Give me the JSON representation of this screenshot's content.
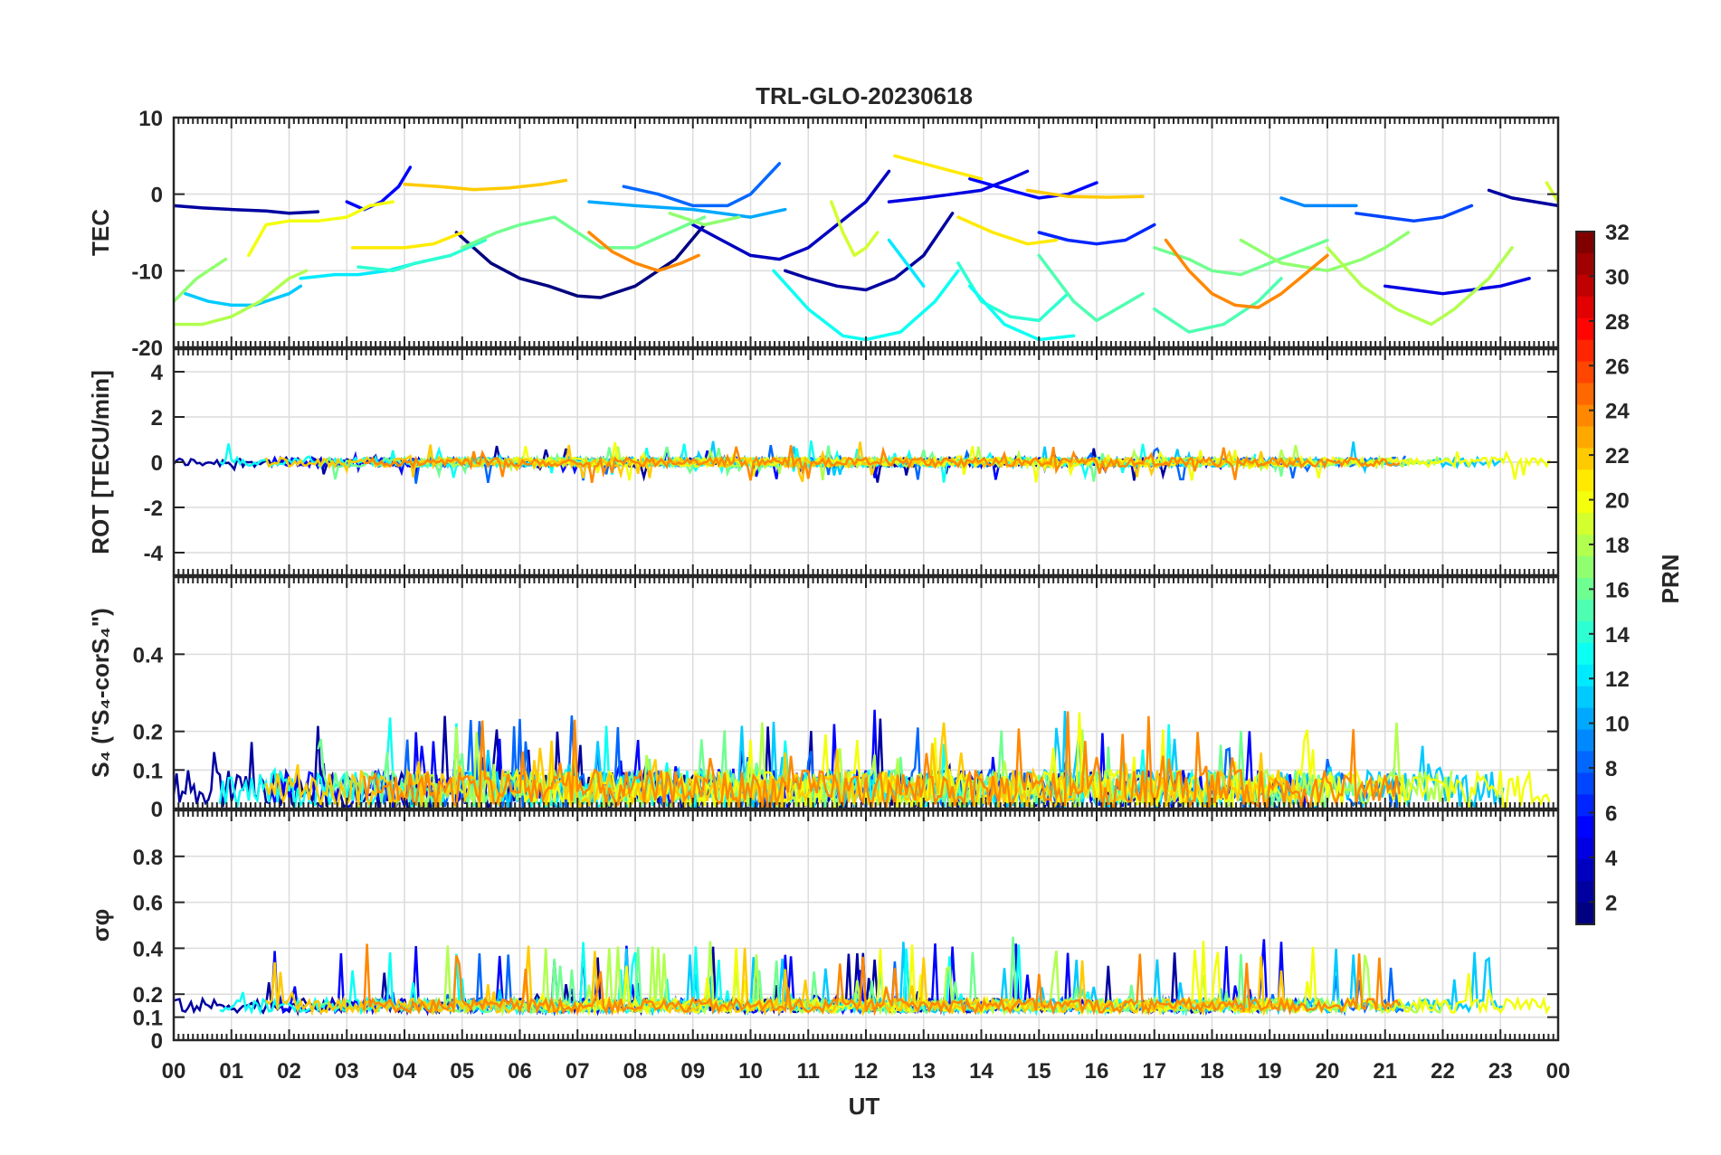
{
  "chart_data": [
    {
      "type": "line",
      "panel": "tec",
      "title": "TRL-GLO-20230618",
      "ylabel": "TEC",
      "ylim": [
        -20,
        10
      ],
      "yticks": [
        {
          "v": 10,
          "label": "10"
        },
        {
          "v": 0,
          "label": "0"
        },
        {
          "v": -10,
          "label": "-10"
        },
        {
          "v": -20,
          "label": "-20"
        }
      ],
      "grid": true,
      "series": [
        {
          "name": "PRN 1",
          "prn": 1,
          "x": [
            4.9,
            5.5,
            6.0,
            6.5,
            7.0,
            7.4,
            8.0,
            8.7,
            9.2
          ],
          "y": [
            -5,
            -9,
            -11,
            -12,
            -13.3,
            -13.5,
            -12,
            -8.5,
            -4
          ]
        },
        {
          "name": "PRN 2",
          "prn": 2,
          "x": [
            0.0,
            0.5,
            1.0,
            1.6,
            2.0,
            2.5
          ],
          "y": [
            -1.5,
            -1.8,
            -2,
            -2.2,
            -2.5,
            -2.3
          ]
        },
        {
          "name": "PRN 3",
          "prn": 3,
          "x": [
            9.0,
            9.5,
            10.0,
            10.5,
            11.0,
            11.5,
            12.0,
            12.4
          ],
          "y": [
            -4,
            -6,
            -8,
            -8.5,
            -7,
            -4,
            -1,
            3
          ]
        },
        {
          "name": "PRN 2b",
          "prn": 2,
          "x": [
            10.6,
            11.0,
            11.5,
            12.0,
            12.5,
            13.0,
            13.5
          ],
          "y": [
            -10,
            -11,
            -12,
            -12.5,
            -11,
            -8,
            -2.5
          ]
        },
        {
          "name": "PRN 4",
          "prn": 4,
          "x": [
            12.4,
            13.0,
            13.5,
            14.0,
            14.5,
            14.8
          ],
          "y": [
            -1,
            -0.5,
            0,
            0.5,
            2,
            3
          ]
        },
        {
          "name": "PRN 5",
          "prn": 5,
          "x": [
            3.0,
            3.3,
            3.6,
            3.9,
            4.1
          ],
          "y": [
            -1,
            -2,
            -1,
            1,
            3.5
          ]
        },
        {
          "name": "PRN 4b",
          "prn": 4,
          "x": [
            21.0,
            21.5,
            22.0,
            22.5,
            23.0,
            23.5
          ],
          "y": [
            -12,
            -12.5,
            -13,
            -12.5,
            -12,
            -11
          ]
        },
        {
          "name": "PRN 6",
          "prn": 6,
          "x": [
            15.0,
            15.5,
            16.0,
            16.5,
            17.0
          ],
          "y": [
            -5,
            -6,
            -6.5,
            -6,
            -4
          ]
        },
        {
          "name": "PRN 5b",
          "prn": 5,
          "x": [
            13.8,
            14.5,
            15.0,
            15.5,
            16.0
          ],
          "y": [
            2,
            0.5,
            -0.5,
            0,
            1.5
          ]
        },
        {
          "name": "PRN 8",
          "prn": 8,
          "x": [
            7.8,
            8.4,
            9.0,
            9.6,
            10.0,
            10.5
          ],
          "y": [
            1,
            0,
            -1.5,
            -1.5,
            0,
            4
          ]
        },
        {
          "name": "PRN 9",
          "prn": 9,
          "x": [
            19.2,
            19.6,
            20.0,
            20.5
          ],
          "y": [
            -0.5,
            -1.5,
            -1.5,
            -1.5
          ]
        },
        {
          "name": "PRN 7",
          "prn": 7,
          "x": [
            20.5,
            21.0,
            21.5,
            22.0,
            22.5
          ],
          "y": [
            -2.5,
            -3,
            -3.5,
            -3,
            -1.5
          ]
        },
        {
          "name": "PRN 10",
          "prn": 10,
          "x": [
            7.2,
            8.0,
            9.0,
            10.0,
            10.6
          ],
          "y": [
            -1,
            -1.5,
            -2,
            -3,
            -2
          ]
        },
        {
          "name": "PRN 11",
          "prn": 11,
          "x": [
            0.2,
            0.6,
            1.0,
            1.4,
            2.0,
            2.2
          ],
          "y": [
            -13,
            -14,
            -14.5,
            -14.5,
            -13,
            -12
          ]
        },
        {
          "name": "PRN 12",
          "prn": 12,
          "x": [
            2.2,
            2.8,
            3.2,
            3.7,
            4.2,
            4.8
          ],
          "y": [
            -11,
            -10.5,
            -10.5,
            -10,
            -9,
            -8
          ]
        },
        {
          "name": "PRN 13",
          "prn": 13,
          "x": [
            10.4,
            11.0,
            11.6,
            12.0,
            12.6,
            13.2,
            13.6
          ],
          "y": [
            -10,
            -15,
            -18.5,
            -19,
            -18,
            -14,
            -10
          ]
        },
        {
          "name": "PRN 12b",
          "prn": 12,
          "x": [
            12.4,
            12.8,
            13.0
          ],
          "y": [
            -6,
            -10,
            -12
          ]
        },
        {
          "name": "PRN 14",
          "prn": 14,
          "x": [
            13.6,
            14.0,
            14.5,
            15.0,
            15.5
          ],
          "y": [
            -9,
            -14,
            -16,
            -16.5,
            -13
          ]
        },
        {
          "name": "PRN 15",
          "prn": 15,
          "x": [
            15.0,
            15.6,
            16.0,
            16.8
          ],
          "y": [
            -8,
            -14,
            -16.5,
            -13
          ]
        },
        {
          "name": "PRN 13b",
          "prn": 13,
          "x": [
            13.8,
            14.4,
            15.0,
            15.6
          ],
          "y": [
            -12,
            -17,
            -19,
            -18.5
          ]
        },
        {
          "name": "PRN 16",
          "prn": 16,
          "x": [
            17.0,
            17.6,
            18.0,
            18.5,
            19.0,
            19.5,
            20.0
          ],
          "y": [
            -7,
            -8.5,
            -10,
            -10.5,
            -9,
            -7.5,
            -6
          ]
        },
        {
          "name": "PRN 14b",
          "prn": 14,
          "x": [
            3.2,
            3.8,
            4.2,
            4.8,
            5.4
          ],
          "y": [
            -9.5,
            -10,
            -9,
            -8,
            -6
          ]
        },
        {
          "name": "PRN 15b",
          "prn": 15,
          "x": [
            17.0,
            17.6,
            18.2,
            18.8,
            19.2
          ],
          "y": [
            -15,
            -18,
            -17,
            -14,
            -11
          ]
        },
        {
          "name": "PRN 16b",
          "prn": 16,
          "x": [
            5.0,
            5.6,
            6.0,
            6.6,
            7.0,
            7.4,
            8.0,
            8.6,
            9.2
          ],
          "y": [
            -7,
            -5,
            -4,
            -3,
            -5,
            -7,
            -7,
            -5,
            -3
          ]
        },
        {
          "name": "PRN 17",
          "prn": 17,
          "x": [
            18.5,
            19.2,
            20.0,
            20.6,
            21.0,
            21.4
          ],
          "y": [
            -6,
            -9,
            -10,
            -8.5,
            -7,
            -5
          ]
        },
        {
          "name": "PRN 18",
          "prn": 18,
          "x": [
            20.0,
            20.6,
            21.2,
            21.8,
            22.2,
            22.8,
            23.2
          ],
          "y": [
            -7,
            -12,
            -15,
            -17,
            -15,
            -11,
            -7
          ]
        },
        {
          "name": "PRN 17b",
          "prn": 17,
          "x": [
            8.6,
            9.2,
            9.8
          ],
          "y": [
            -2.5,
            -4,
            -3
          ]
        },
        {
          "name": "PRN 19",
          "prn": 19,
          "x": [
            11.4,
            11.6,
            11.8,
            12.0,
            12.2
          ],
          "y": [
            -1,
            -5,
            -8,
            -7,
            -5
          ]
        },
        {
          "name": "PRN 18b",
          "prn": 18,
          "x": [
            0.0,
            0.5,
            1.0,
            1.5,
            2.0,
            2.3
          ],
          "y": [
            -17,
            -17,
            -16,
            -14,
            -11,
            -10
          ]
        },
        {
          "name": "PRN 17c",
          "prn": 17,
          "x": [
            0.0,
            0.4,
            0.9
          ],
          "y": [
            -14,
            -11,
            -8.5
          ]
        },
        {
          "name": "PRN 20",
          "prn": 20,
          "x": [
            1.3,
            1.6,
            2.0,
            2.5,
            3.0,
            3.4,
            3.8
          ],
          "y": [
            -8,
            -4,
            -3.5,
            -3.5,
            -3,
            -1.5,
            -1
          ]
        },
        {
          "name": "PRN 21",
          "prn": 21,
          "x": [
            3.1,
            3.6,
            4.0,
            4.5,
            5.0
          ],
          "y": [
            -7,
            -7,
            -7,
            -6.5,
            -5
          ]
        },
        {
          "name": "PRN 22",
          "prn": 22,
          "x": [
            4.0,
            4.6,
            5.2,
            5.8,
            6.4,
            6.8
          ],
          "y": [
            1.3,
            1,
            0.6,
            0.8,
            1.3,
            1.8
          ]
        },
        {
          "name": "PRN 21b",
          "prn": 21,
          "x": [
            12.5,
            13.0,
            13.5,
            14.0
          ],
          "y": [
            5,
            4,
            3,
            2
          ]
        },
        {
          "name": "PRN 22b",
          "prn": 22,
          "x": [
            14.8,
            15.5,
            16.2,
            16.8
          ],
          "y": [
            0.5,
            -0.3,
            -0.4,
            -0.3
          ]
        },
        {
          "name": "PRN 21c",
          "prn": 21,
          "x": [
            13.6,
            14.2,
            14.8,
            15.3
          ],
          "y": [
            -3,
            -5,
            -6.5,
            -6
          ]
        },
        {
          "name": "PRN 19b",
          "prn": 19,
          "x": [
            23.8,
            24.0
          ],
          "y": [
            1.5,
            -1
          ]
        },
        {
          "name": "PRN 24",
          "prn": 24,
          "x": [
            7.2,
            7.6,
            8.0,
            8.4,
            8.8,
            9.1
          ],
          "y": [
            -5,
            -7.5,
            -9,
            -10,
            -9,
            -8
          ]
        },
        {
          "name": "PRN 24b",
          "prn": 24,
          "x": [
            17.2,
            17.6,
            18.0,
            18.4,
            18.8,
            19.2,
            19.6,
            20.0
          ],
          "y": [
            -6,
            -10,
            -13,
            -14.5,
            -14.8,
            -13,
            -10.5,
            -8
          ]
        },
        {
          "name": "PRN 2c",
          "prn": 2,
          "x": [
            22.8,
            23.2,
            23.6,
            24.0
          ],
          "y": [
            0.5,
            -0.5,
            -1,
            -1.5
          ]
        }
      ]
    },
    {
      "type": "line",
      "panel": "rot",
      "ylabel": "ROT [TECU/min]",
      "ylim": [
        -5,
        5
      ],
      "yticks": [
        {
          "v": 4,
          "label": "4"
        },
        {
          "v": 2,
          "label": "2"
        },
        {
          "v": 0,
          "label": "0"
        },
        {
          "v": -2,
          "label": "-2"
        },
        {
          "v": -4,
          "label": "-4"
        }
      ],
      "grid": true,
      "noise": {
        "center": 0,
        "amplitude": 0.2,
        "peak_amplitude": 0.8
      }
    },
    {
      "type": "line",
      "panel": "s4",
      "ylabel": "S₄ (\"S₄-corS₄\")",
      "ylim": [
        0,
        0.6
      ],
      "yticks": [
        {
          "v": 0.4,
          "label": "0.4"
        },
        {
          "v": 0.2,
          "label": "0.2"
        },
        {
          "v": 0.1,
          "label": "0.1"
        },
        {
          "v": 0,
          "label": "0"
        }
      ],
      "grid": true,
      "noise": {
        "center": 0.05,
        "amplitude": 0.05,
        "peak_amplitude": 0.17
      }
    },
    {
      "type": "line",
      "panel": "sigma",
      "ylabel": "σφ",
      "ylim": [
        0,
        1
      ],
      "yticks": [
        {
          "v": 0.8,
          "label": "0.8"
        },
        {
          "v": 0.6,
          "label": "0.6"
        },
        {
          "v": 0.4,
          "label": "0.4"
        },
        {
          "v": 0.2,
          "label": "0.2"
        },
        {
          "v": 0.1,
          "label": "0.1"
        },
        {
          "v": 0,
          "label": "0"
        }
      ],
      "grid": true,
      "noise": {
        "center": 0.15,
        "amplitude": 0.03,
        "peak_amplitude": 0.28
      }
    }
  ],
  "x_axis": {
    "label": "UT",
    "range": [
      0,
      24
    ],
    "ticks": [
      "00",
      "01",
      "02",
      "03",
      "04",
      "05",
      "06",
      "07",
      "08",
      "09",
      "10",
      "11",
      "12",
      "13",
      "14",
      "15",
      "16",
      "17",
      "18",
      "19",
      "20",
      "21",
      "22",
      "23",
      "00"
    ]
  },
  "colorbar": {
    "label": "PRN",
    "range": [
      1,
      32
    ],
    "ticks": [
      "32",
      "30",
      "28",
      "26",
      "24",
      "22",
      "20",
      "18",
      "16",
      "14",
      "12",
      "10",
      "8",
      "6",
      "4",
      "2"
    ],
    "tick_values": [
      32,
      30,
      28,
      26,
      24,
      22,
      20,
      18,
      16,
      14,
      12,
      10,
      8,
      6,
      4,
      2
    ],
    "colormap": "jet"
  },
  "colors": {
    "axis": "#262626",
    "grid": "#dcdcdc",
    "background": "#ffffff"
  }
}
